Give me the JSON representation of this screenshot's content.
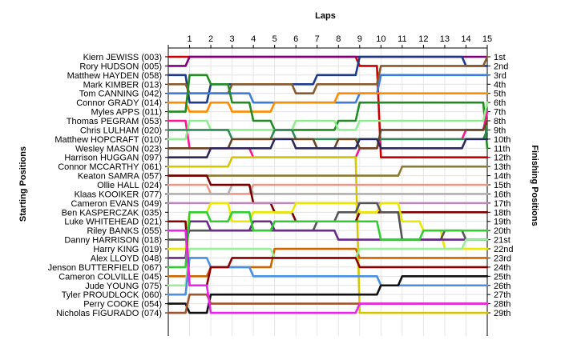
{
  "chart_data": {
    "type": "line",
    "title": "Laps",
    "ylabel_left": "Starting Positions",
    "ylabel_right": "Finishing Positions",
    "x_ticks": [
      "1",
      "2",
      "3",
      "4",
      "5",
      "6",
      "7",
      "8",
      "9",
      "10",
      "11",
      "12",
      "13",
      "14",
      "15"
    ],
    "x": [
      0,
      1,
      2,
      3,
      4,
      5,
      6,
      7,
      8,
      9,
      10,
      11,
      12,
      13,
      14,
      15
    ],
    "drivers": [
      "Kiern JEWISS (003)",
      "Rory HUDSON (005)",
      "Matthew HAYDEN (058)",
      "Mark KIMBER (013)",
      "Tom CANNING (042)",
      "Connor GRADY (014)",
      "Myles APPS (011)",
      "Thomas PEGRAM (053)",
      "Chris LULHAM (020)",
      "Matthew HOPCRAFT (010)",
      "Wesley MASON (023)",
      "Harrison HUGGAN (097)",
      "Connor MCCARTHY (061)",
      "Keaton SAMRA (057)",
      "Ollie HALL (024)",
      "Klaas KOOIKER (077)",
      "Cameron EVANS (049)",
      "Ben KASPERCZAK (035)",
      "Luke WHITEHEAD (021)",
      "Riley BANKS (055)",
      "Danny HARRISON (018)",
      "Harry KING (019)",
      "Alex LLOYD (048)",
      "Jenson BUTTERFIELD (067)",
      "Cameron COLVILLE (045)",
      "Jude YOUNG (075)",
      "Tyler PROUDLOCK (060)",
      "Perry COOKE (054)",
      "Nicholas FIGURADO (074)"
    ],
    "finish_labels": [
      "1st",
      "2nd",
      "3rd",
      "4th",
      "5th",
      "6th",
      "7th",
      "8th",
      "9th",
      "10th",
      "11th",
      "12th",
      "13th",
      "14th",
      "15th",
      "16th",
      "17th",
      "18th",
      "19th",
      "20th",
      "21st",
      "22nd",
      "23rd",
      "24th",
      "25th",
      "26th",
      "27th",
      "28th",
      "29th"
    ],
    "series": [
      {
        "color": "#cc0000",
        "values": [
          1,
          1,
          1,
          1,
          1,
          1,
          1,
          1,
          1,
          2,
          12,
          12,
          12,
          12,
          12,
          12
        ]
      },
      {
        "color": "#800080",
        "values": [
          2,
          1,
          1,
          1,
          1,
          1,
          1,
          1,
          1,
          1,
          1,
          1,
          1,
          1,
          1,
          1
        ]
      },
      {
        "color": "#1e3a8a",
        "values": [
          3,
          6,
          4,
          4,
          4,
          4,
          4,
          3,
          3,
          1,
          1,
          1,
          1,
          1,
          2,
          2
        ]
      },
      {
        "color": "#8b5a2b",
        "values": [
          4,
          5,
          5,
          4,
          4,
          4,
          5,
          4,
          4,
          4,
          2,
          2,
          2,
          2,
          2,
          1
        ]
      },
      {
        "color": "#3b7dd8",
        "values": [
          5,
          5,
          5,
          5,
          6,
          6,
          6,
          6,
          6,
          5,
          3,
          3,
          3,
          3,
          3,
          3
        ]
      },
      {
        "color": "#ff8c00",
        "values": [
          6,
          7,
          6,
          7,
          7,
          6,
          6,
          6,
          5,
          5,
          5,
          5,
          5,
          5,
          5,
          5
        ]
      },
      {
        "color": "#228b22",
        "values": [
          7,
          3,
          4,
          6,
          8,
          9,
          9,
          9,
          8,
          6,
          6,
          6,
          6,
          6,
          6,
          11
        ]
      },
      {
        "color": "#ff1493",
        "values": [
          8,
          11,
          11,
          11,
          12,
          12,
          12,
          12,
          12,
          11,
          10,
          10,
          10,
          10,
          9,
          7
        ]
      },
      {
        "color": "#90ee90",
        "values": [
          10,
          8,
          9,
          9,
          9,
          9,
          8,
          8,
          9,
          8,
          8,
          8,
          8,
          8,
          8,
          6
        ]
      },
      {
        "color": "#2e8b57",
        "values": [
          9,
          9,
          9,
          10,
          10,
          9,
          10,
          10,
          10,
          10,
          10,
          10,
          10,
          10,
          10,
          9
        ]
      },
      {
        "color": "#6b4423",
        "values": [
          11,
          11,
          11,
          10,
          10,
          10,
          10,
          11,
          10,
          11,
          9,
          9,
          9,
          9,
          9,
          8
        ]
      },
      {
        "color": "#2a2a5a",
        "values": [
          12,
          12,
          11,
          11,
          11,
          10,
          11,
          11,
          11,
          10,
          11,
          11,
          11,
          11,
          10,
          10
        ]
      },
      {
        "color": "#d4c800",
        "values": [
          13,
          13,
          13,
          12,
          12,
          12,
          12,
          12,
          12,
          29,
          29,
          29,
          29,
          29,
          29,
          29
        ]
      },
      {
        "color": "#8b7a30",
        "values": [
          14,
          14,
          14,
          14,
          14,
          14,
          14,
          14,
          14,
          14,
          14,
          13,
          13,
          13,
          13,
          13
        ]
      },
      {
        "color": "#e89a8a",
        "values": [
          15,
          15,
          16,
          16,
          15,
          15,
          15,
          15,
          15,
          15,
          15,
          15,
          15,
          15,
          15,
          15
        ]
      },
      {
        "color": "#b0b0b0",
        "values": [
          16,
          16,
          16,
          15,
          16,
          16,
          16,
          16,
          16,
          16,
          16,
          16,
          16,
          16,
          16,
          16
        ]
      },
      {
        "color": "#7a0000",
        "values": [
          14,
          14,
          15,
          15,
          17,
          18,
          19,
          19,
          19,
          18,
          18,
          18,
          18,
          18,
          18,
          18
        ]
      },
      {
        "color": "#bb88bb",
        "values": [
          17,
          17,
          17,
          17,
          17,
          17,
          17,
          17,
          17,
          17,
          17,
          17,
          17,
          17,
          17,
          17
        ]
      },
      {
        "color": "#e8e800",
        "values": [
          22,
          18,
          17,
          19,
          18,
          18,
          17,
          17,
          17,
          18,
          17,
          19,
          20,
          22,
          22,
          22
        ]
      },
      {
        "color": "#555555",
        "values": [
          21,
          20,
          20,
          20,
          20,
          20,
          20,
          19,
          18,
          17,
          18,
          21,
          21,
          20,
          21,
          21
        ]
      },
      {
        "color": "#6a2a8a",
        "values": [
          23,
          19,
          20,
          20,
          19,
          20,
          20,
          20,
          21,
          21,
          21,
          21,
          21,
          21,
          21,
          21
        ]
      },
      {
        "color": "#32cd32",
        "values": [
          24,
          18,
          19,
          18,
          20,
          19,
          19,
          19,
          19,
          19,
          21,
          21,
          20,
          20,
          20,
          20
        ]
      },
      {
        "color": "#cc6600",
        "values": [
          25,
          25,
          24,
          24,
          24,
          22,
          22,
          22,
          22,
          23,
          23,
          23,
          23,
          23,
          23,
          23
        ]
      },
      {
        "color": "#9aee9a",
        "values": [
          26,
          22,
          22,
          22,
          22,
          23,
          23,
          23,
          23,
          22,
          22,
          22,
          22,
          22,
          21,
          21
        ]
      },
      {
        "color": "#4a90e2",
        "values": [
          27,
          23,
          24,
          24,
          25,
          25,
          25,
          25,
          25,
          25,
          26,
          26,
          26,
          26,
          26,
          26
        ]
      },
      {
        "color": "#111111",
        "values": [
          28,
          29,
          27,
          27,
          27,
          27,
          27,
          27,
          27,
          27,
          26,
          25,
          25,
          25,
          25,
          25
        ]
      },
      {
        "color": "#a0522d",
        "values": [
          29,
          27,
          28,
          28,
          28,
          28,
          28,
          28,
          28,
          28,
          28,
          28,
          28,
          28,
          28,
          28
        ]
      },
      {
        "color": "#8b0000",
        "values": [
          19,
          26,
          24,
          23,
          23,
          23,
          23,
          23,
          23,
          24,
          24,
          24,
          24,
          24,
          24,
          24
        ]
      },
      {
        "color": "#ee22ee",
        "values": [
          20,
          26,
          29,
          29,
          29,
          29,
          29,
          29,
          29,
          28,
          28,
          28,
          28,
          28,
          28,
          28
        ]
      }
    ]
  }
}
